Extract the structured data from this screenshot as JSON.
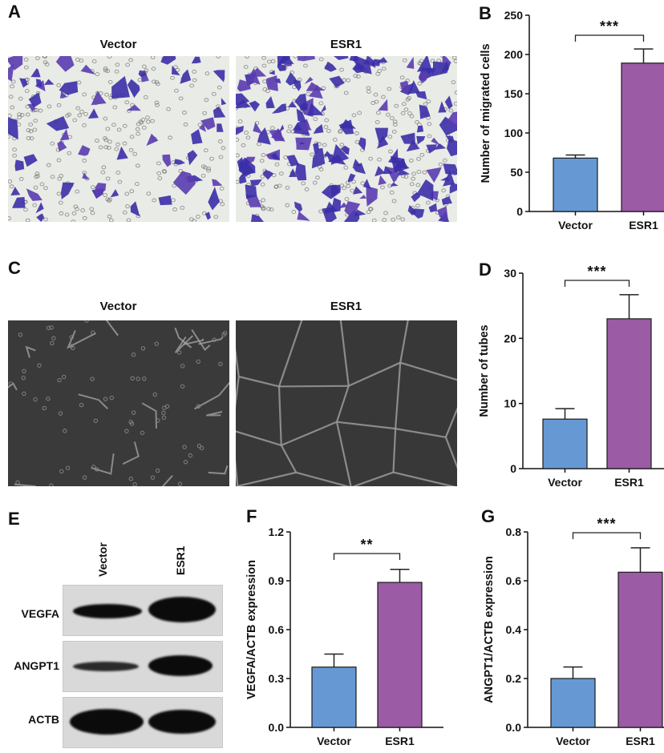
{
  "figure": {
    "panels": {
      "A": {
        "letter": "A",
        "titles": [
          "Vector",
          "ESR1"
        ],
        "description": "Transwell migration crystal-violet stained cells"
      },
      "C": {
        "letter": "C",
        "titles": [
          "Vector",
          "ESR1"
        ],
        "description": "Tube formation assay phase-contrast images"
      },
      "E": {
        "letter": "E",
        "lanes": [
          "Vector",
          "ESR1"
        ],
        "rows": [
          "VEGFA",
          "ANGPT1",
          "ACTB"
        ]
      }
    },
    "colors": {
      "vector": "#6699d4",
      "esr1": "#9b5ba5",
      "axis": "#111111"
    }
  },
  "chart_data": [
    {
      "panel": "B",
      "type": "bar",
      "title": "",
      "categories": [
        "Vector",
        "ESR1"
      ],
      "values": [
        68,
        189
      ],
      "errors": [
        4,
        18
      ],
      "xlabel": "",
      "ylabel": "Number of migrated cells",
      "ylim": [
        0,
        250
      ],
      "yticks": [
        "0",
        "50",
        "100",
        "150",
        "200",
        "250"
      ],
      "significance": "***",
      "grid": false
    },
    {
      "panel": "D",
      "type": "bar",
      "title": "",
      "categories": [
        "Vector",
        "ESR1"
      ],
      "values": [
        7.6,
        23
      ],
      "errors": [
        1.6,
        3.7
      ],
      "xlabel": "",
      "ylabel": "Number of tubes",
      "ylim": [
        0,
        30
      ],
      "yticks": [
        "0",
        "10",
        "20",
        "30"
      ],
      "significance": "***",
      "grid": false
    },
    {
      "panel": "F",
      "type": "bar",
      "title": "",
      "categories": [
        "Vector",
        "ESR1"
      ],
      "values": [
        0.37,
        0.89
      ],
      "errors": [
        0.08,
        0.08
      ],
      "xlabel": "",
      "ylabel": "VEGFA/ACTB expression",
      "ylim": [
        0,
        1.2
      ],
      "yticks": [
        "0.0",
        "0.3",
        "0.6",
        "0.9",
        "1.2"
      ],
      "significance": "**",
      "grid": false
    },
    {
      "panel": "G",
      "type": "bar",
      "title": "",
      "categories": [
        "Vector",
        "ESR1"
      ],
      "values": [
        0.2,
        0.635
      ],
      "errors": [
        0.047,
        0.1
      ],
      "xlabel": "",
      "ylabel": "ANGPT1/ACTB expression",
      "ylim": [
        0,
        0.8
      ],
      "yticks": [
        "0.0",
        "0.2",
        "0.4",
        "0.6",
        "0.8"
      ],
      "significance": "***",
      "grid": false
    }
  ]
}
